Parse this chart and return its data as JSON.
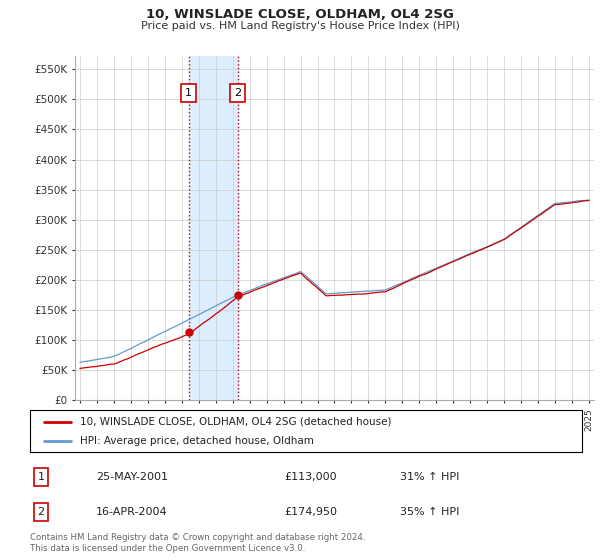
{
  "title": "10, WINSLADE CLOSE, OLDHAM, OL4 2SG",
  "subtitle": "Price paid vs. HM Land Registry's House Price Index (HPI)",
  "ylabel_ticks": [
    "£0",
    "£50K",
    "£100K",
    "£150K",
    "£200K",
    "£250K",
    "£300K",
    "£350K",
    "£400K",
    "£450K",
    "£500K",
    "£550K"
  ],
  "ytick_values": [
    0,
    50000,
    100000,
    150000,
    200000,
    250000,
    300000,
    350000,
    400000,
    450000,
    500000,
    550000
  ],
  "sale1_year": 2001.4,
  "sale1_price": 113000,
  "sale2_year": 2004.3,
  "sale2_price": 174950,
  "red_line_color": "#cc0000",
  "blue_line_color": "#6699cc",
  "shade_color": "#ddeeff",
  "legend_label_red": "10, WINSLADE CLOSE, OLDHAM, OL4 2SG (detached house)",
  "legend_label_blue": "HPI: Average price, detached house, Oldham",
  "sale1_date": "25-MAY-2001",
  "sale1_pct": "31% ↑ HPI",
  "sale2_date": "16-APR-2004",
  "sale2_pct": "35% ↑ HPI",
  "footnote": "Contains HM Land Registry data © Crown copyright and database right 2024.\nThis data is licensed under the Open Government Licence v3.0."
}
